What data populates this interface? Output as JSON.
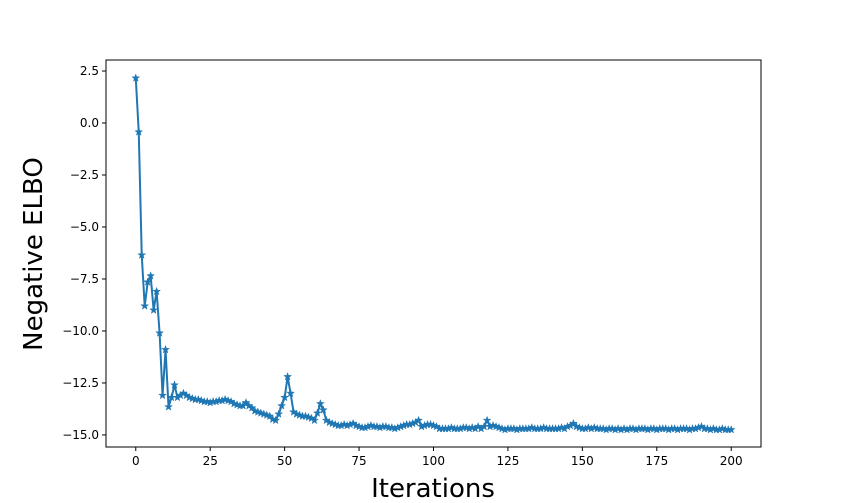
{
  "chart_data": {
    "type": "line",
    "x_label": "Iterations",
    "y_label": "Negative ELBO",
    "x": [
      0,
      1,
      2,
      3,
      4,
      5,
      6,
      7,
      8,
      9,
      10,
      11,
      12,
      13,
      14,
      15,
      16,
      17,
      18,
      19,
      20,
      21,
      22,
      23,
      24,
      25,
      26,
      27,
      28,
      29,
      30,
      31,
      32,
      33,
      34,
      35,
      36,
      37,
      38,
      39,
      40,
      41,
      42,
      43,
      44,
      45,
      46,
      47,
      48,
      49,
      50,
      51,
      52,
      53,
      54,
      55,
      56,
      57,
      58,
      59,
      60,
      61,
      62,
      63,
      64,
      65,
      66,
      67,
      68,
      69,
      70,
      71,
      72,
      73,
      74,
      75,
      76,
      77,
      78,
      79,
      80,
      81,
      82,
      83,
      84,
      85,
      86,
      87,
      88,
      89,
      90,
      91,
      92,
      93,
      94,
      95,
      96,
      97,
      98,
      99,
      100,
      101,
      102,
      103,
      104,
      105,
      106,
      107,
      108,
      109,
      110,
      111,
      112,
      113,
      114,
      115,
      116,
      117,
      118,
      119,
      120,
      121,
      122,
      123,
      124,
      125,
      126,
      127,
      128,
      129,
      130,
      131,
      132,
      133,
      134,
      135,
      136,
      137,
      138,
      139,
      140,
      141,
      142,
      143,
      144,
      145,
      146,
      147,
      148,
      149,
      150,
      151,
      152,
      153,
      154,
      155,
      156,
      157,
      158,
      159,
      160,
      161,
      162,
      163,
      164,
      165,
      166,
      167,
      168,
      169,
      170,
      171,
      172,
      173,
      174,
      175,
      176,
      177,
      178,
      179,
      180,
      181,
      182,
      183,
      184,
      185,
      186,
      187,
      188,
      189,
      190,
      191,
      192,
      193,
      194,
      195,
      196,
      197,
      198,
      199,
      200
    ],
    "series": [
      {
        "color": "#1f77b4",
        "values": [
          2.16,
          -0.43,
          -6.35,
          -8.8,
          -7.65,
          -7.35,
          -9.0,
          -8.1,
          -10.1,
          -13.1,
          -10.9,
          -13.65,
          -13.2,
          -12.6,
          -13.2,
          -13.1,
          -13.0,
          -13.1,
          -13.2,
          -13.25,
          -13.3,
          -13.3,
          -13.35,
          -13.4,
          -13.4,
          -13.45,
          -13.4,
          -13.4,
          -13.35,
          -13.35,
          -13.3,
          -13.35,
          -13.4,
          -13.5,
          -13.55,
          -13.6,
          -13.6,
          -13.45,
          -13.6,
          -13.7,
          -13.85,
          -13.9,
          -13.95,
          -14.0,
          -14.05,
          -14.1,
          -14.25,
          -14.3,
          -14.0,
          -13.6,
          -13.2,
          -12.2,
          -13.0,
          -13.9,
          -14.0,
          -14.05,
          -14.1,
          -14.1,
          -14.15,
          -14.2,
          -14.3,
          -13.95,
          -13.5,
          -13.8,
          -14.3,
          -14.4,
          -14.45,
          -14.5,
          -14.55,
          -14.55,
          -14.5,
          -14.55,
          -14.5,
          -14.45,
          -14.55,
          -14.6,
          -14.65,
          -14.65,
          -14.6,
          -14.55,
          -14.6,
          -14.6,
          -14.65,
          -14.6,
          -14.6,
          -14.65,
          -14.65,
          -14.7,
          -14.65,
          -14.6,
          -14.55,
          -14.5,
          -14.5,
          -14.45,
          -14.4,
          -14.3,
          -14.6,
          -14.55,
          -14.5,
          -14.5,
          -14.55,
          -14.6,
          -14.7,
          -14.7,
          -14.7,
          -14.7,
          -14.65,
          -14.7,
          -14.7,
          -14.7,
          -14.65,
          -14.65,
          -14.7,
          -14.65,
          -14.7,
          -14.6,
          -14.7,
          -14.6,
          -14.3,
          -14.6,
          -14.55,
          -14.6,
          -14.65,
          -14.7,
          -14.75,
          -14.7,
          -14.7,
          -14.7,
          -14.75,
          -14.7,
          -14.7,
          -14.7,
          -14.7,
          -14.65,
          -14.7,
          -14.7,
          -14.7,
          -14.65,
          -14.7,
          -14.7,
          -14.7,
          -14.7,
          -14.7,
          -14.65,
          -14.7,
          -14.6,
          -14.55,
          -14.45,
          -14.6,
          -14.65,
          -14.7,
          -14.7,
          -14.65,
          -14.7,
          -14.65,
          -14.7,
          -14.7,
          -14.7,
          -14.75,
          -14.7,
          -14.7,
          -14.75,
          -14.7,
          -14.75,
          -14.7,
          -14.75,
          -14.7,
          -14.7,
          -14.75,
          -14.7,
          -14.7,
          -14.7,
          -14.75,
          -14.7,
          -14.7,
          -14.75,
          -14.7,
          -14.7,
          -14.7,
          -14.75,
          -14.7,
          -14.7,
          -14.75,
          -14.7,
          -14.7,
          -14.7,
          -14.75,
          -14.7,
          -14.7,
          -14.65,
          -14.6,
          -14.7,
          -14.7,
          -14.75,
          -14.7,
          -14.75,
          -14.75,
          -14.7,
          -14.75,
          -14.75,
          -14.75
        ]
      }
    ],
    "xlim": [
      -10,
      210
    ],
    "ylim": [
      -15.58,
      3.03
    ],
    "xticks": [
      0,
      25,
      50,
      75,
      100,
      125,
      150,
      175,
      200
    ],
    "yticks": [
      2.5,
      {
        "value": 0,
        "label": "0.0"
      },
      {
        "value": -2.5,
        "label": "−2.5"
      },
      {
        "value": -5,
        "label": "−5.0"
      },
      {
        "value": -7.5,
        "label": "−7.5"
      },
      {
        "value": -10,
        "label": "−10.0"
      },
      {
        "value": -12.5,
        "label": "−12.5"
      },
      {
        "value": -15,
        "label": "−15.0"
      }
    ],
    "marker": "star"
  }
}
